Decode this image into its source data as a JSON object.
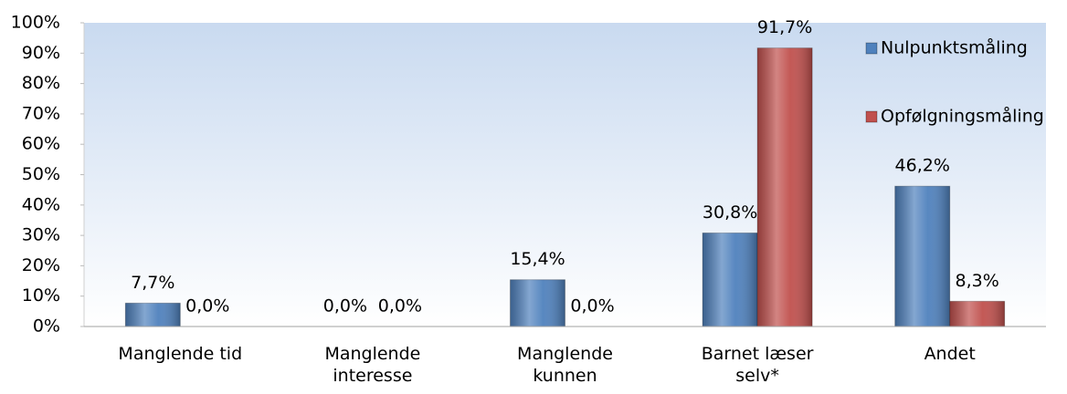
{
  "chart_data": {
    "type": "bar",
    "categories": [
      "Manglende tid",
      "Manglende\ninteresse",
      "Manglende\nkunnen",
      "Barnet læser\nselv*",
      "Andet"
    ],
    "series": [
      {
        "name": "Nulpunktsmåling",
        "color": "#4f81bd",
        "values": [
          7.7,
          0,
          15.4,
          30.8,
          46.2
        ],
        "value_labels": [
          "7,7%",
          "0,0%",
          "15,4%",
          "30,8%",
          "46,2%"
        ]
      },
      {
        "name": "Opfølgningsmåling",
        "color": "#c0504d",
        "values": [
          0,
          0,
          0,
          91.7,
          8.3
        ],
        "value_labels": [
          "0,0%",
          "0,0%",
          "0,0%",
          "91,7%",
          "8,3%"
        ]
      }
    ],
    "ylim": [
      0,
      100
    ],
    "yticks": [
      {
        "value": 0,
        "label": "0%"
      },
      {
        "value": 10,
        "label": "10%"
      },
      {
        "value": 20,
        "label": "20%"
      },
      {
        "value": 30,
        "label": "30%"
      },
      {
        "value": 40,
        "label": "40%"
      },
      {
        "value": 50,
        "label": "50%"
      },
      {
        "value": 60,
        "label": "60%"
      },
      {
        "value": 70,
        "label": "70%"
      },
      {
        "value": 80,
        "label": "80%"
      },
      {
        "value": 90,
        "label": "90%"
      },
      {
        "value": 100,
        "label": "100%"
      }
    ],
    "legend": "right"
  }
}
